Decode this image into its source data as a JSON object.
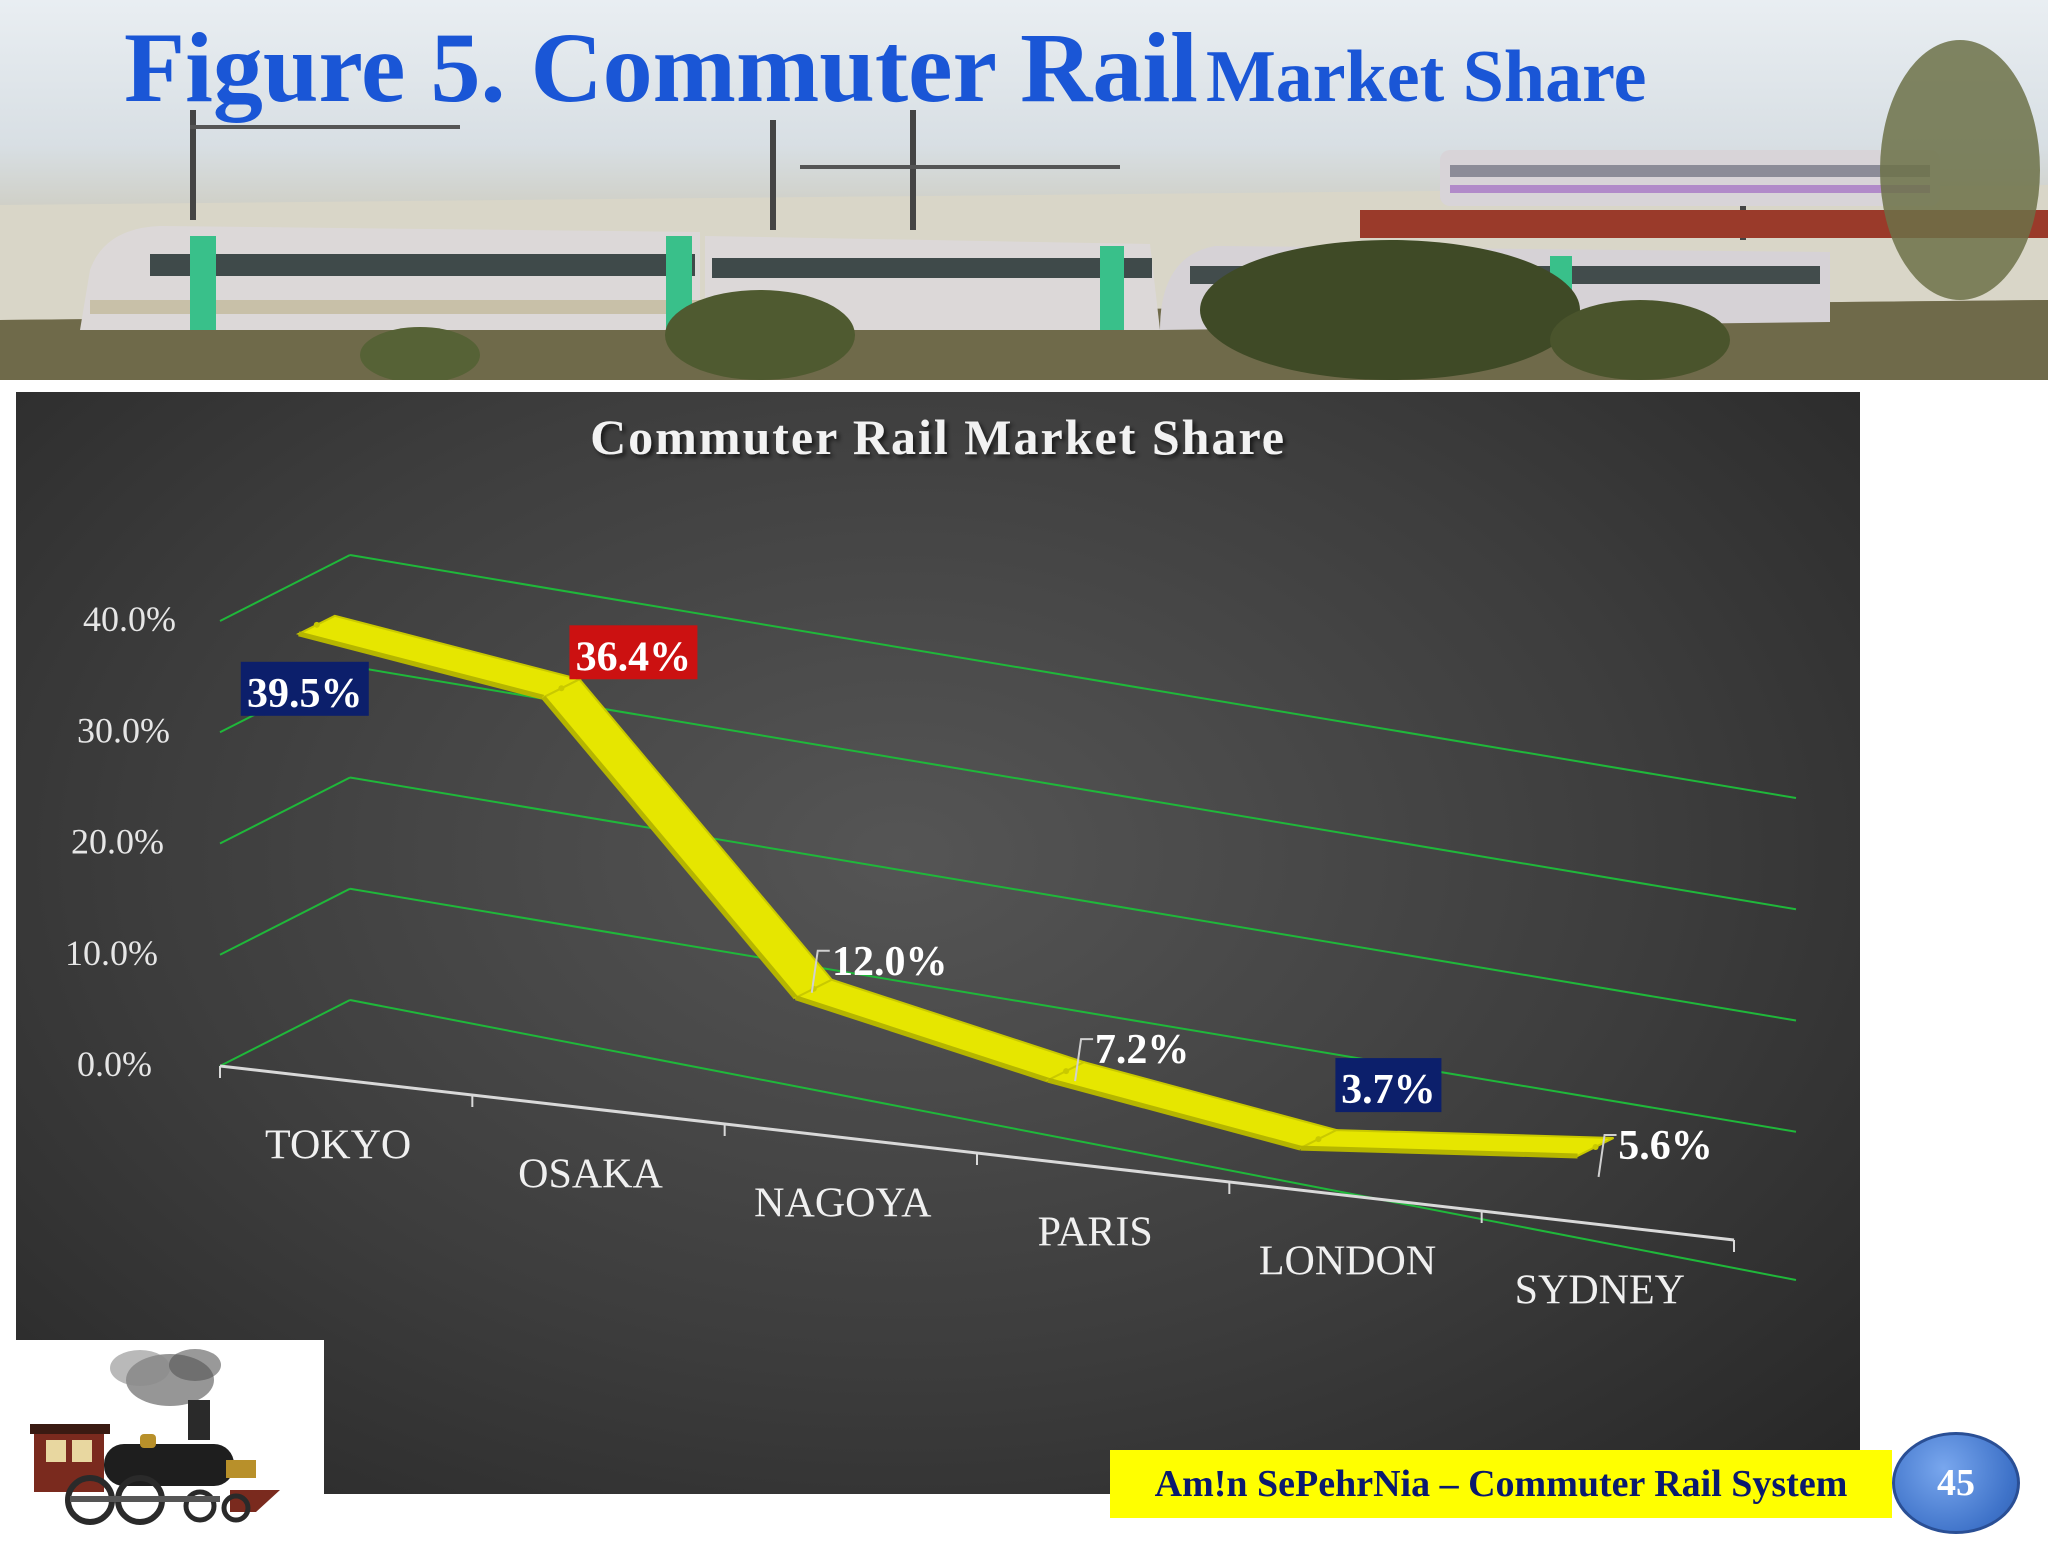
{
  "slide": {
    "title_main": "Figure 5. Commuter Rail",
    "title_sub": "Market Share",
    "footer": "Am!n SePehrNia – Commuter Rail System",
    "page_number": "45"
  },
  "chart_data": {
    "type": "line",
    "title": "Commuter Rail Market Share",
    "categories": [
      "TOKYO",
      "OSAKA",
      "NAGOYA",
      "PARIS",
      "LONDON",
      "SYDNEY"
    ],
    "series": [
      {
        "values": [
          39.5,
          36.4,
          12.0,
          7.2,
          3.7,
          5.6
        ],
        "color": "#e6e600"
      }
    ],
    "data_labels": [
      "39.5%",
      "36.4%",
      "12.0%",
      "7.2%",
      "3.7%",
      "5.6%"
    ],
    "label_styles": [
      "navy",
      "red",
      "plain",
      "plain",
      "navy",
      "plain"
    ],
    "y_ticks": [
      "0.0%",
      "10.0%",
      "20.0%",
      "30.0%",
      "40.0%"
    ],
    "ylim": [
      0,
      40
    ],
    "grid": true,
    "gridline_color": "#1fb83a",
    "xlabel": "",
    "ylabel": "",
    "legend": "none",
    "style": "3d-line"
  },
  "colors": {
    "title_blue": "#1a56d6",
    "label_navy": "#0c1f6b",
    "label_red": "#cc1111",
    "footer_yellow": "#ffff00",
    "footer_text": "#0a1a6e",
    "badge_blue": "#4a7fd6"
  }
}
